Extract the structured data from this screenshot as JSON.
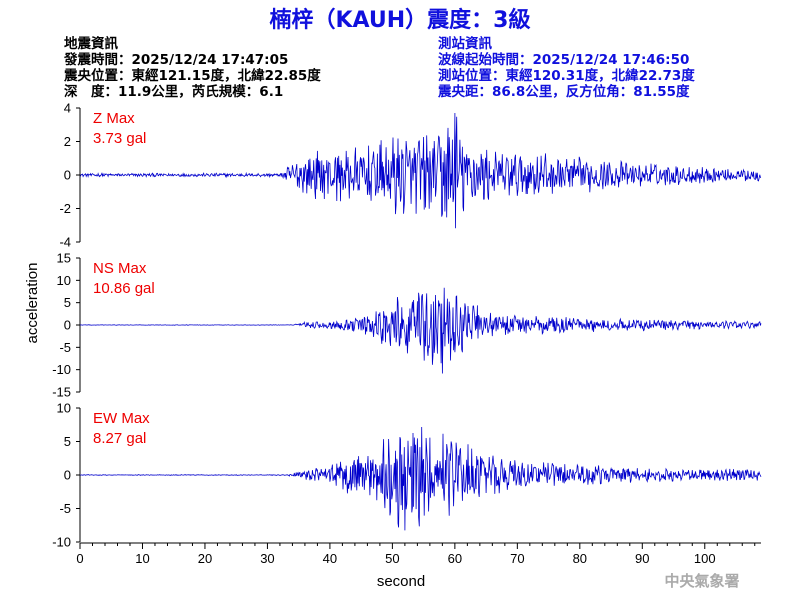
{
  "title": "楠梓（KAUH）震度：3級",
  "info_left": {
    "heading": "地震資訊",
    "time": "發震時間：2025/12/24 17:47:05",
    "epicenter": "震央位置：東經121.15度，北緯22.85度",
    "depth": "深　度：11.9公里，芮氏規模：6.1"
  },
  "info_right": {
    "heading": "測站資訊",
    "wave_start": "波線起始時間：2025/12/24 17:46:50",
    "station": "測站位置：東經120.31度，北緯22.73度",
    "distance": "震央距：86.8公里，反方位角：81.55度"
  },
  "agency": "中央氣象署",
  "colors": {
    "title": "#1010dd",
    "trace": "#0000cc",
    "max_label": "#ee0000",
    "agency": "#aaaaaa"
  },
  "chart_data": {
    "type": "line",
    "xlabel": "second",
    "ylabel": "acceleration",
    "xlim": [
      0,
      109
    ],
    "x_ticks": [
      0,
      10,
      20,
      30,
      40,
      50,
      60,
      70,
      80,
      90,
      100
    ],
    "grid": false,
    "panels": [
      {
        "name": "Z",
        "max_label": "Z Max",
        "max_value": "3.73 gal",
        "ylim": [
          -4,
          4
        ],
        "y_ticks": [
          -4,
          -2,
          0,
          2,
          4
        ],
        "envelope": [
          [
            0,
            0.1
          ],
          [
            32,
            0.1
          ],
          [
            34,
            0.7
          ],
          [
            38,
            1.4
          ],
          [
            44,
            1.6
          ],
          [
            50,
            2.2
          ],
          [
            55,
            2.4
          ],
          [
            60,
            3.7
          ],
          [
            62,
            2.0
          ],
          [
            66,
            1.5
          ],
          [
            72,
            1.3
          ],
          [
            80,
            1.0
          ],
          [
            90,
            0.7
          ],
          [
            100,
            0.5
          ],
          [
            109,
            0.35
          ]
        ]
      },
      {
        "name": "NS",
        "max_label": "NS Max",
        "max_value": "10.86 gal",
        "ylim": [
          -15,
          15
        ],
        "y_ticks": [
          -15,
          -10,
          -5,
          0,
          5,
          10,
          15
        ],
        "envelope": [
          [
            0,
            0.05
          ],
          [
            34,
            0.05
          ],
          [
            36,
            0.6
          ],
          [
            42,
            1.0
          ],
          [
            46,
            2.5
          ],
          [
            50,
            5.5
          ],
          [
            53,
            7.5
          ],
          [
            56,
            8.5
          ],
          [
            58,
            10.86
          ],
          [
            61,
            6.0
          ],
          [
            65,
            3.0
          ],
          [
            70,
            2.2
          ],
          [
            80,
            1.6
          ],
          [
            90,
            1.2
          ],
          [
            100,
            0.9
          ],
          [
            109,
            0.7
          ]
        ]
      },
      {
        "name": "EW",
        "max_label": "EW Max",
        "max_value": "8.27 gal",
        "ylim": [
          -10,
          10
        ],
        "y_ticks": [
          -10,
          -5,
          0,
          5,
          10
        ],
        "envelope": [
          [
            0,
            0.05
          ],
          [
            33,
            0.05
          ],
          [
            35,
            0.6
          ],
          [
            40,
            1.5
          ],
          [
            45,
            3.5
          ],
          [
            49,
            5.5
          ],
          [
            52,
            8.27
          ],
          [
            55,
            7.0
          ],
          [
            58,
            6.5
          ],
          [
            62,
            4.5
          ],
          [
            66,
            3.0
          ],
          [
            72,
            2.0
          ],
          [
            80,
            1.5
          ],
          [
            90,
            1.0
          ],
          [
            100,
            0.8
          ],
          [
            109,
            0.9
          ]
        ]
      }
    ]
  }
}
